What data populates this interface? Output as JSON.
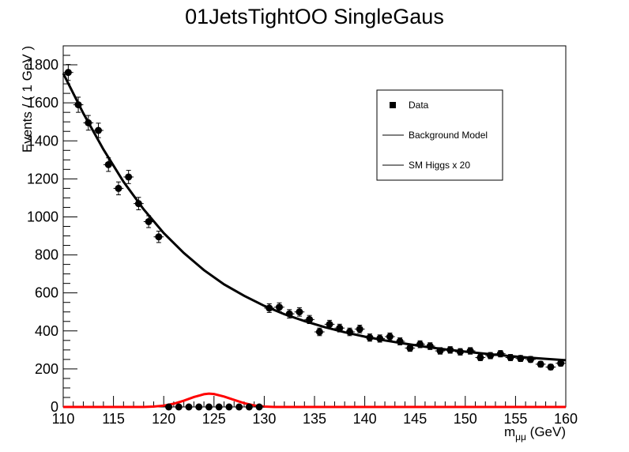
{
  "chart_data": {
    "type": "scatter",
    "title": "01JetsTightOO SingleGaus",
    "xlabel_main": "m",
    "xlabel_sub": "μμ",
    "xlabel_unit": " (GeV)",
    "ylabel": "Events / ( 1 GeV )",
    "xlim": [
      110,
      160
    ],
    "ylim": [
      0,
      1900
    ],
    "x_ticks": [
      110,
      115,
      120,
      125,
      130,
      135,
      140,
      145,
      150,
      155,
      160
    ],
    "y_ticks": [
      0,
      200,
      400,
      600,
      800,
      1000,
      1200,
      1400,
      1600,
      1800
    ],
    "legend": {
      "position": "top-right",
      "entries": [
        {
          "label": "Data",
          "kind": "marker"
        },
        {
          "label": "Background Model",
          "kind": "line"
        },
        {
          "label": "SM Higgs x 20",
          "kind": "line"
        }
      ]
    },
    "colors": {
      "data": "#000000",
      "background": "#000000",
      "signal": "#ff0000"
    },
    "series": [
      {
        "name": "Data",
        "kind": "points",
        "x": [
          110.5,
          111.5,
          112.5,
          113.5,
          114.5,
          115.5,
          116.5,
          117.5,
          118.5,
          119.5,
          120.5,
          121.5,
          122.5,
          123.5,
          124.5,
          125.5,
          126.5,
          127.5,
          128.5,
          129.5,
          130.5,
          131.5,
          132.5,
          133.5,
          134.5,
          135.5,
          136.5,
          137.5,
          138.5,
          139.5,
          140.5,
          141.5,
          142.5,
          143.5,
          144.5,
          145.5,
          146.5,
          147.5,
          148.5,
          149.5,
          150.5,
          151.5,
          152.5,
          153.5,
          154.5,
          155.5,
          156.5,
          157.5,
          158.5,
          159.5
        ],
        "y": [
          1760,
          1590,
          1495,
          1455,
          1275,
          1150,
          1210,
          1070,
          975,
          895,
          0,
          0,
          0,
          0,
          0,
          0,
          0,
          0,
          0,
          0,
          520,
          525,
          490,
          500,
          460,
          395,
          435,
          415,
          395,
          410,
          365,
          360,
          370,
          345,
          310,
          330,
          320,
          295,
          300,
          290,
          295,
          260,
          270,
          280,
          260,
          255,
          250,
          225,
          210,
          230
        ]
      },
      {
        "name": "Background Model",
        "kind": "curve",
        "x": [
          110,
          112,
          114,
          116,
          118,
          120,
          122,
          124,
          126,
          128,
          130,
          132,
          134,
          136,
          138,
          140,
          142,
          144,
          146,
          148,
          150,
          152,
          154,
          156,
          158,
          160
        ],
        "y": [
          1755,
          1545,
          1355,
          1185,
          1040,
          915,
          810,
          720,
          645,
          585,
          532,
          488,
          452,
          420,
          393,
          370,
          350,
          333,
          317,
          303,
          291,
          280,
          270,
          261,
          253,
          246
        ]
      },
      {
        "name": "SM Higgs x 20",
        "kind": "curve",
        "x": [
          110,
          118,
          119,
          120,
          121,
          122,
          123,
          124,
          124.5,
          125,
          126,
          127,
          128,
          129,
          130,
          131,
          160
        ],
        "y": [
          0,
          0,
          2,
          7,
          17,
          33,
          52,
          67,
          70,
          68,
          55,
          37,
          20,
          8,
          2,
          0,
          0
        ]
      }
    ]
  }
}
